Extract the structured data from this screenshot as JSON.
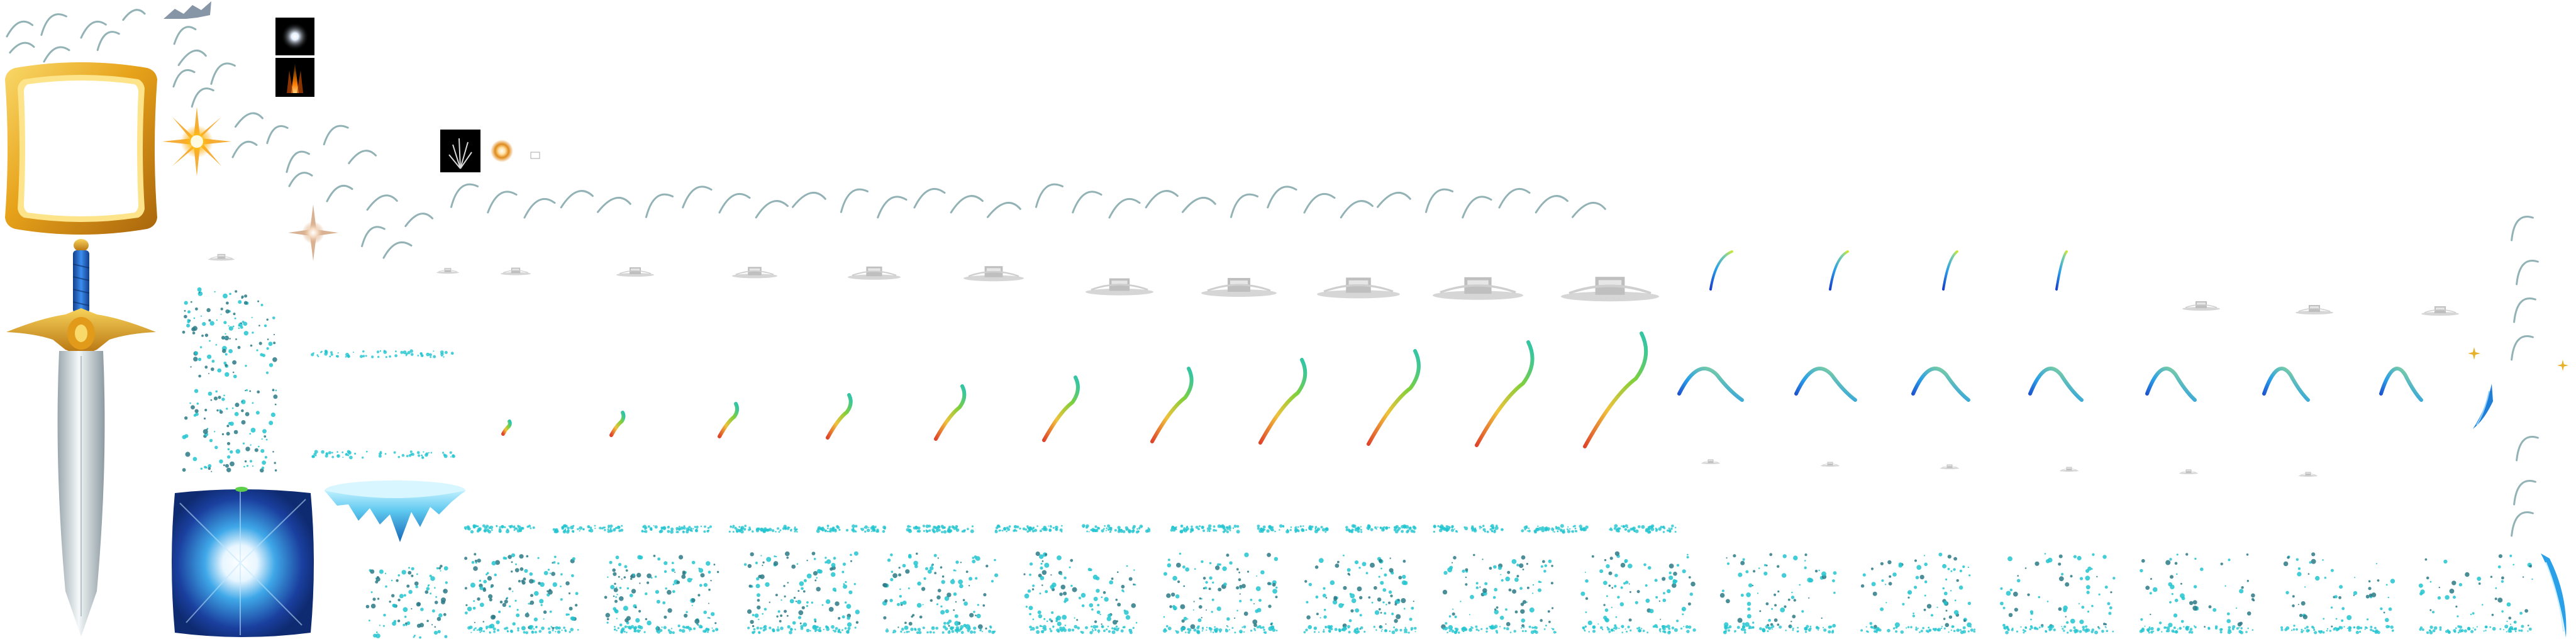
{
  "atlas": {
    "background": "#ffffff",
    "colors": {
      "gold": "#e7a21a",
      "gold_light": "#f7d25a",
      "gold_dark": "#a8650c",
      "blade": "#dfe6e8",
      "blade_shadow": "#9aa7ad",
      "hilt_blue": "#1f63c4",
      "cyan": "#22c4cf",
      "teal_dark": "#2b7a86",
      "swoosh": "#7fa4a8",
      "ice_blue": "#3fa8e8",
      "ice_deep": "#1a3f9e",
      "glow_white": "#ffffff",
      "fire_orange": "#f08a12",
      "grey_prop": "#bfbfbf"
    },
    "sprites": [
      {
        "name": "gold-frame",
        "icon": "ornate-gold-frame"
      },
      {
        "name": "sword",
        "icon": "sword-blue-hilt"
      },
      {
        "name": "energy-cube",
        "icon": "glowing-blue-cube"
      },
      {
        "name": "ice-platform",
        "icon": "floating-ice-island"
      },
      {
        "name": "sunburst",
        "icon": "golden-starburst"
      },
      {
        "name": "sparkle",
        "icon": "lens-sparkle"
      },
      {
        "name": "light-dot",
        "icon": "white-glow-dot"
      },
      {
        "name": "fire-streak",
        "icon": "orange-flame-streak"
      },
      {
        "name": "light-rays",
        "icon": "white-light-rays"
      },
      {
        "name": "orange-ring",
        "icon": "orange-glow-ring"
      },
      {
        "name": "swoosh-arc",
        "icon": "grey-teal-swoosh"
      },
      {
        "name": "grey-prop",
        "icon": "grey-object-sequence"
      },
      {
        "name": "rainbow-trail",
        "icon": "gradient-whip-trail"
      },
      {
        "name": "blue-arc",
        "icon": "blue-green-arc"
      },
      {
        "name": "teal-particles",
        "icon": "teal-particle-cloud"
      },
      {
        "name": "blue-feather",
        "icon": "blue-feather-streak"
      },
      {
        "name": "gold-twinkle",
        "icon": "small-gold-star"
      }
    ]
  }
}
